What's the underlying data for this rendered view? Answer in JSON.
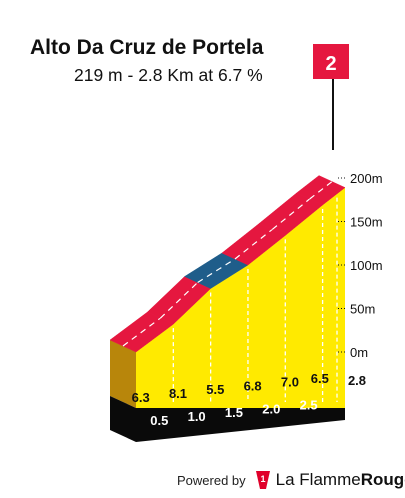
{
  "chart_data": {
    "type": "area",
    "title": "Alto Da Cruz de Portela",
    "subtitle": "219 m - 2.8 Km at 6.7 %",
    "categorization_badge": "2",
    "x_ticks": [
      "0.5",
      "1.0",
      "1.5",
      "2.0",
      "2.5",
      "2.8"
    ],
    "y_ticks": [
      "0m",
      "50m",
      "100m",
      "150m",
      "200m"
    ],
    "xlim": [
      0,
      2.8
    ],
    "ylim": [
      0,
      200
    ],
    "segments": [
      {
        "from": 0.0,
        "to": 0.5,
        "gradient": "6.3",
        "color": "#e5173f"
      },
      {
        "from": 0.5,
        "to": 1.0,
        "gradient": "8.1",
        "color": "#e5173f"
      },
      {
        "from": 1.0,
        "to": 1.5,
        "gradient": "5.5",
        "color": "#1f5d8a"
      },
      {
        "from": 1.5,
        "to": 2.0,
        "gradient": "6.8",
        "color": "#e5173f"
      },
      {
        "from": 2.0,
        "to": 2.5,
        "gradient": "7.0",
        "color": "#e5173f"
      },
      {
        "from": 2.5,
        "to": 2.8,
        "gradient": "6.5",
        "color": "#e5173f"
      }
    ],
    "elevation_points": [
      {
        "x": 0.0,
        "y": 0
      },
      {
        "x": 0.5,
        "y": 32
      },
      {
        "x": 1.0,
        "y": 73
      },
      {
        "x": 1.5,
        "y": 100
      },
      {
        "x": 2.0,
        "y": 134
      },
      {
        "x": 2.5,
        "y": 169
      },
      {
        "x": 2.8,
        "y": 189
      }
    ]
  },
  "footer": {
    "powered_by": "Powered by",
    "brand_part1": "La Flamme",
    "brand_part2": "Rouge"
  },
  "colors": {
    "fill": "#ffea00",
    "side": "#b8860b",
    "base": "#0a0a0a",
    "red": "#e5173f",
    "blue": "#1f5d8a"
  }
}
